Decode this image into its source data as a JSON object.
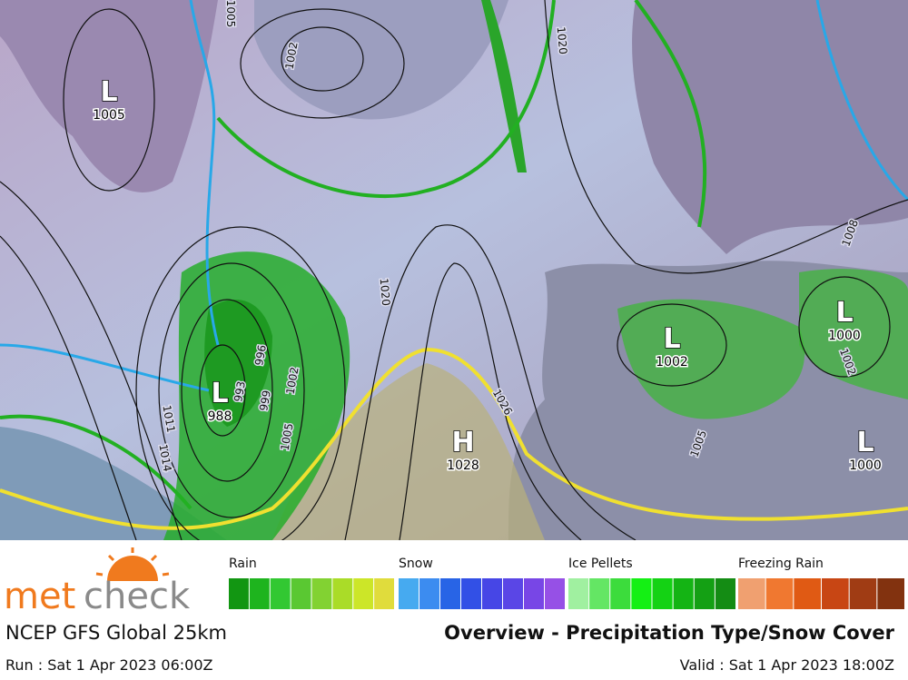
{
  "map": {
    "pressure_centers": [
      {
        "symbol": "L",
        "value": 1005
      },
      {
        "symbol": "L",
        "value": 988
      },
      {
        "symbol": "H",
        "value": 1028
      },
      {
        "symbol": "L",
        "value": 1002
      },
      {
        "symbol": "L",
        "value": 1000
      },
      {
        "symbol": "L",
        "value": 1000
      }
    ],
    "isobar_labels": [
      "1005",
      "1002",
      "1020",
      "1020",
      "1026",
      "996",
      "999",
      "1002",
      "1005",
      "993",
      "1011",
      "1014",
      "1008",
      "1005",
      "1002"
    ]
  },
  "legend": [
    {
      "label": "Rain",
      "colors": [
        "#129612",
        "#1eb41e",
        "#32c832",
        "#5ac832",
        "#82d232",
        "#aadc28",
        "#cce628",
        "#e0dc3c"
      ]
    },
    {
      "label": "Snow",
      "colors": [
        "#46aaf0",
        "#3c8cf0",
        "#2864e6",
        "#3250e6",
        "#4646e6",
        "#5a46e6",
        "#7846e6",
        "#9650e6"
      ]
    },
    {
      "label": "Ice Pellets",
      "colors": [
        "#a0f0a0",
        "#64e664",
        "#3cdc3c",
        "#14f014",
        "#14d214",
        "#14b414",
        "#14a014",
        "#148c14"
      ]
    },
    {
      "label": "Freezing Rain",
      "colors": [
        "#f0a070",
        "#f07830",
        "#e05a14",
        "#c84614",
        "#a03c14",
        "#82320f"
      ]
    }
  ],
  "footer": {
    "brand_met": "met",
    "brand_check": "check",
    "model": "NCEP GFS Global 25km",
    "title": "Overview - Precipitation Type/Snow Cover",
    "run": "Run : Sat 1 Apr 2023 06:00Z",
    "valid": "Valid : Sat 1 Apr 2023 18:00Z"
  }
}
